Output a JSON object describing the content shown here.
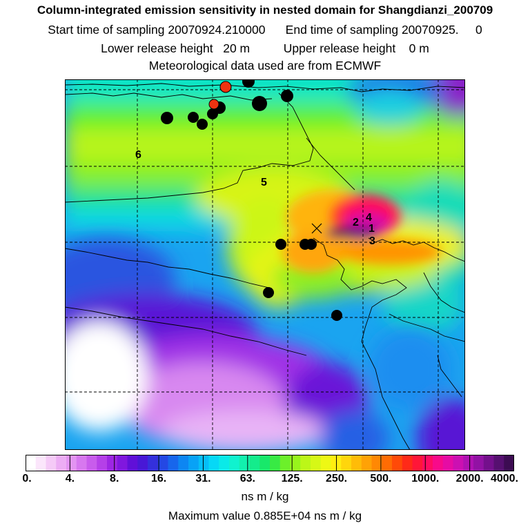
{
  "header": {
    "title": "Column-integrated emission sensitivity in nested domain for Shangdianzi_200709",
    "sampling": "Start time of sampling 20070924.210000      End time of sampling 20070925.     0",
    "release": "Lower release height   20 m          Upper release height    0 m",
    "met": "Meteorological data used are from ECMWF"
  },
  "map": {
    "release_labels": [
      {
        "id": "label-1",
        "text": "1"
      },
      {
        "id": "label-2",
        "text": "2"
      },
      {
        "id": "label-3",
        "text": "3"
      },
      {
        "id": "label-4",
        "text": "4"
      },
      {
        "id": "label-5",
        "text": "5"
      },
      {
        "id": "label-6",
        "text": "6"
      }
    ],
    "colors": {
      "black_dot": "#000000",
      "red_dot": "#ee3311",
      "receptor_marker": "#000000"
    }
  },
  "colorbar": {
    "tick_labels": [
      "0.",
      "4.",
      "8.",
      "16.",
      "31.",
      "63.",
      "125.",
      "250.",
      "500.",
      "1000.",
      "2000.",
      "4000."
    ],
    "colors": [
      "#ffffff",
      "#fbe6fb",
      "#f5caf7",
      "#ecadf4",
      "#e394f2",
      "#d778ef",
      "#c85cec",
      "#b540e8",
      "#9d26e3",
      "#8017de",
      "#6010d8",
      "#4818d6",
      "#3430dc",
      "#2448e4",
      "#1766ec",
      "#0d86f2",
      "#08a2f6",
      "#06bef8",
      "#06d8f6",
      "#0aeae8",
      "#10f2cf",
      "#12f0ae",
      "#14ec8c",
      "#18e86a",
      "#38ea44",
      "#6cf02a",
      "#98f41c",
      "#bcf618",
      "#d6f816",
      "#eef814",
      "#ffee10",
      "#ffd60c",
      "#ffbc08",
      "#ffa206",
      "#ff8804",
      "#ff6c04",
      "#ff4a08",
      "#ff2a18",
      "#ff1638",
      "#ff0c62",
      "#f80a8a",
      "#e60ca4",
      "#cc10b2",
      "#b012b2",
      "#9212a4",
      "#74108c",
      "#561070",
      "#3c0c52"
    ],
    "unit": "ns m / kg",
    "max_value": "Maximum value  0.885E+04 ns m / kg"
  }
}
